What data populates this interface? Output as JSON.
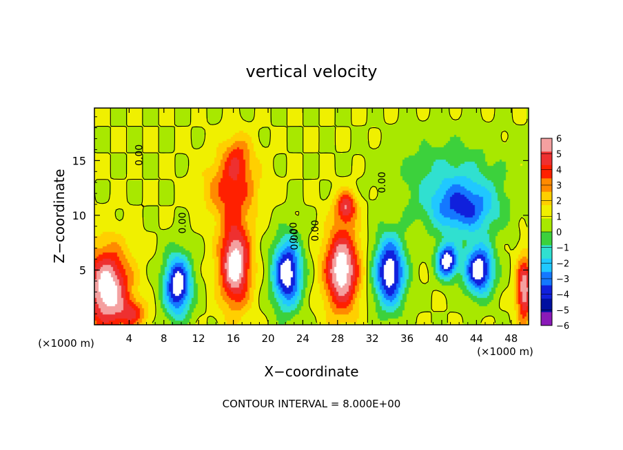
{
  "chart_data": {
    "type": "heatmap",
    "title": "vertical velocity",
    "xlabel": "X−coordinate",
    "ylabel": "Z−coordinate",
    "x_unit_left": "(×1000 m)",
    "x_unit_right": "(×1000 m)",
    "xlim": [
      0,
      50
    ],
    "ylim": [
      0,
      19.8
    ],
    "x_ticks": [
      4,
      8,
      12,
      16,
      20,
      24,
      28,
      32,
      36,
      40,
      44,
      48
    ],
    "y_ticks": [
      5,
      10,
      15
    ],
    "colorbar": {
      "levels": [
        6,
        5,
        4,
        3,
        2,
        1,
        0,
        -1,
        -2,
        -3,
        -4,
        -5,
        -6
      ],
      "labels": [
        "6",
        "5",
        "4",
        "3",
        "2",
        "1",
        "0",
        "−1",
        "−2",
        "−3",
        "−4",
        "−5",
        "−6"
      ],
      "colors": [
        "#f4a0a0",
        "#ee3030",
        "#ff2000",
        "#ff8a00",
        "#ffcf00",
        "#f0f000",
        "#a8e800",
        "#3cd13c",
        "#30e0d0",
        "#20c8ff",
        "#1478ff",
        "#1020dc",
        "#0010a0",
        "#8a1ab8"
      ]
    },
    "cells": [
      {
        "x": 1.5,
        "z": 3.2,
        "w": 2.6,
        "r": 3.8,
        "v": 7
      },
      {
        "x": 4.5,
        "z": 1.0,
        "w": 1.6,
        "r": 1.2,
        "v": 3
      },
      {
        "x": 9.6,
        "z": 3.6,
        "w": 1.6,
        "r": 2.8,
        "v": -7
      },
      {
        "x": 16.2,
        "z": 5.5,
        "w": 1.8,
        "r": 3.8,
        "v": 7
      },
      {
        "x": 15.8,
        "z": 12.5,
        "w": 3.0,
        "r": 3.0,
        "v": 3.5
      },
      {
        "x": 16.5,
        "z": 15.5,
        "w": 1.6,
        "r": 2.0,
        "v": 2.5
      },
      {
        "x": 22.2,
        "z": 4.7,
        "w": 1.7,
        "r": 3.2,
        "v": -7
      },
      {
        "x": 28.5,
        "z": 5.0,
        "w": 2.0,
        "r": 3.8,
        "v": 7
      },
      {
        "x": 29.0,
        "z": 10.8,
        "w": 1.2,
        "r": 1.4,
        "v": 4.5
      },
      {
        "x": 34.0,
        "z": 4.8,
        "w": 1.8,
        "r": 3.3,
        "v": -7
      },
      {
        "x": 40.6,
        "z": 5.8,
        "w": 1.2,
        "r": 1.6,
        "v": -7
      },
      {
        "x": 44.3,
        "z": 5.0,
        "w": 1.7,
        "r": 2.3,
        "v": -7
      },
      {
        "x": 42.5,
        "z": 10.5,
        "w": 4.0,
        "r": 2.4,
        "v": -4.5
      },
      {
        "x": 41.0,
        "z": 13.5,
        "w": 6.0,
        "r": 3.5,
        "v": -2.2
      },
      {
        "x": 49.5,
        "z": 3.2,
        "w": 0.9,
        "r": 3.0,
        "v": 6
      }
    ],
    "contour_labels": [
      "0.00",
      "0.00",
      "0.00",
      "0.00",
      "0.00",
      "0.00"
    ],
    "footer": "CONTOUR INTERVAL = 8.000E+00"
  }
}
